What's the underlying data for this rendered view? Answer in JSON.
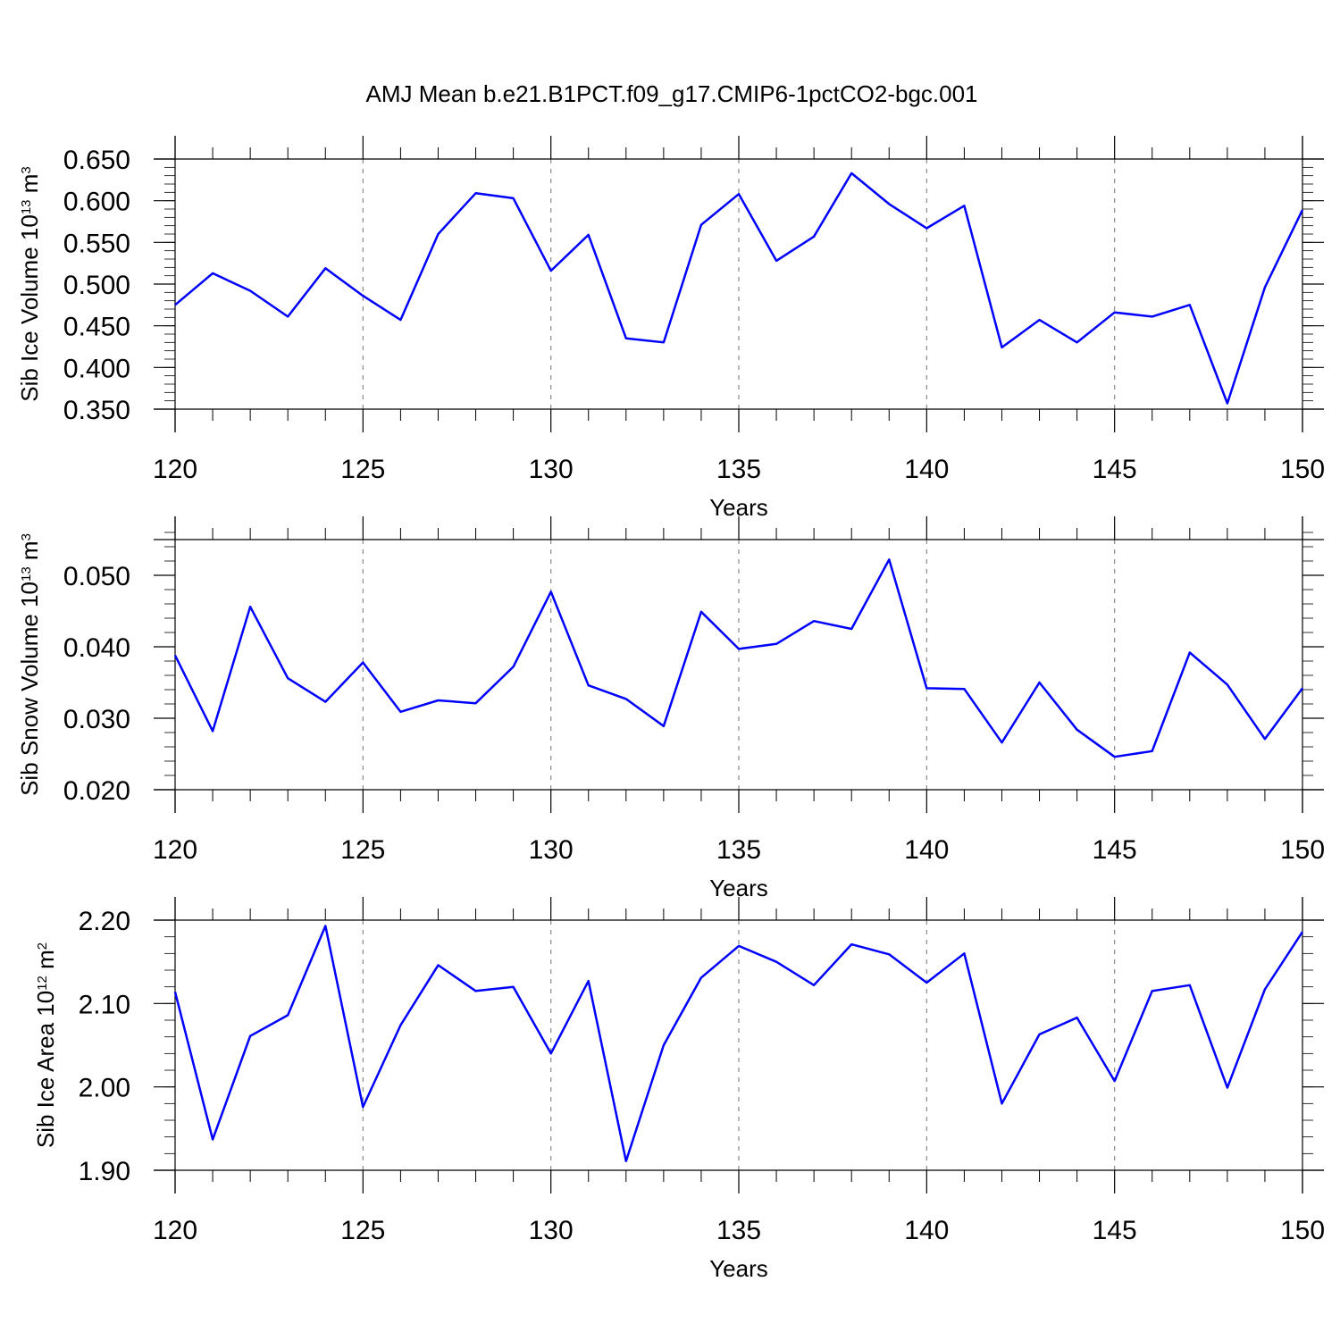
{
  "title": "AMJ Mean b.e21.B1PCT.f09_g17.CMIP6-1pctCO2-bgc.001",
  "colors": {
    "line": "#0000ff",
    "frame": "#000000",
    "grid": "#888888"
  },
  "chart_data": [
    {
      "type": "line",
      "xlabel": "Years",
      "ylabel": {
        "text": "Sib Ice Volume 10",
        "exp": "13",
        "unit": " m",
        "unit_exp": "3"
      },
      "xlim": [
        120,
        150
      ],
      "ylim": [
        0.35,
        0.65
      ],
      "x_ticks": [
        120,
        125,
        130,
        135,
        140,
        145,
        150
      ],
      "x_tick_labels": [
        "120",
        "125",
        "130",
        "135",
        "140",
        "145",
        "150"
      ],
      "y_ticks": [
        0.35,
        0.4,
        0.45,
        0.5,
        0.55,
        0.6,
        0.65
      ],
      "y_tick_labels": [
        "0.350",
        "0.400",
        "0.450",
        "0.500",
        "0.550",
        "0.600",
        "0.650"
      ],
      "y_minor_step": 0.01,
      "grid": "vertical-dashed",
      "x": [
        120,
        121,
        122,
        123,
        124,
        125,
        126,
        127,
        128,
        129,
        130,
        131,
        132,
        133,
        134,
        135,
        136,
        137,
        138,
        139,
        140,
        141,
        142,
        143,
        144,
        145,
        146,
        147,
        148,
        149,
        150
      ],
      "values": [
        0.475,
        0.513,
        0.492,
        0.461,
        0.519,
        0.486,
        0.457,
        0.56,
        0.609,
        0.603,
        0.516,
        0.559,
        0.435,
        0.43,
        0.571,
        0.608,
        0.528,
        0.557,
        0.633,
        0.596,
        0.567,
        0.594,
        0.424,
        0.457,
        0.43,
        0.466,
        0.461,
        0.475,
        0.357,
        0.496,
        0.589
      ]
    },
    {
      "type": "line",
      "xlabel": "Years",
      "ylabel": {
        "text": "Sib Snow Volume 10",
        "exp": "13",
        "unit": " m",
        "unit_exp": "3"
      },
      "xlim": [
        120,
        150
      ],
      "ylim": [
        0.02,
        0.055
      ],
      "x_ticks": [
        120,
        125,
        130,
        135,
        140,
        145,
        150
      ],
      "x_tick_labels": [
        "120",
        "125",
        "130",
        "135",
        "140",
        "145",
        "150"
      ],
      "y_ticks": [
        0.02,
        0.03,
        0.04,
        0.05
      ],
      "y_tick_labels": [
        "0.020",
        "0.030",
        "0.040",
        "0.050"
      ],
      "y_minor_step": 0.002,
      "grid": "vertical-dashed",
      "x": [
        120,
        121,
        122,
        123,
        124,
        125,
        126,
        127,
        128,
        129,
        130,
        131,
        132,
        133,
        134,
        135,
        136,
        137,
        138,
        139,
        140,
        141,
        142,
        143,
        144,
        145,
        146,
        147,
        148,
        149,
        150
      ],
      "values": [
        0.0388,
        0.0282,
        0.0456,
        0.0356,
        0.0323,
        0.0378,
        0.0309,
        0.0325,
        0.0321,
        0.0372,
        0.0477,
        0.0346,
        0.0327,
        0.0289,
        0.0449,
        0.0397,
        0.0404,
        0.0436,
        0.0425,
        0.0522,
        0.0342,
        0.0341,
        0.0266,
        0.035,
        0.0284,
        0.0246,
        0.0254,
        0.0392,
        0.0347,
        0.0271,
        0.0342
      ]
    },
    {
      "type": "line",
      "xlabel": "Years",
      "ylabel": {
        "text": "Sib Ice Area 10",
        "exp": "12",
        "unit": " m",
        "unit_exp": "2"
      },
      "xlim": [
        120,
        150
      ],
      "ylim": [
        1.9,
        2.2
      ],
      "x_ticks": [
        120,
        125,
        130,
        135,
        140,
        145,
        150
      ],
      "x_tick_labels": [
        "120",
        "125",
        "130",
        "135",
        "140",
        "145",
        "150"
      ],
      "y_ticks": [
        1.9,
        2.0,
        2.1,
        2.2
      ],
      "y_tick_labels": [
        "1.90",
        "2.00",
        "2.10",
        "2.20"
      ],
      "y_minor_step": 0.02,
      "grid": "vertical-dashed",
      "x": [
        120,
        121,
        122,
        123,
        124,
        125,
        126,
        127,
        128,
        129,
        130,
        131,
        132,
        133,
        134,
        135,
        136,
        137,
        138,
        139,
        140,
        141,
        142,
        143,
        144,
        145,
        146,
        147,
        148,
        149,
        150
      ],
      "values": [
        2.114,
        1.937,
        2.061,
        2.086,
        2.193,
        1.976,
        2.074,
        2.146,
        2.115,
        2.12,
        2.04,
        2.127,
        1.911,
        2.05,
        2.131,
        2.169,
        2.15,
        2.122,
        2.171,
        2.159,
        2.125,
        2.16,
        1.98,
        2.063,
        2.083,
        2.007,
        2.115,
        2.122,
        1.999,
        2.117,
        2.186
      ]
    }
  ]
}
